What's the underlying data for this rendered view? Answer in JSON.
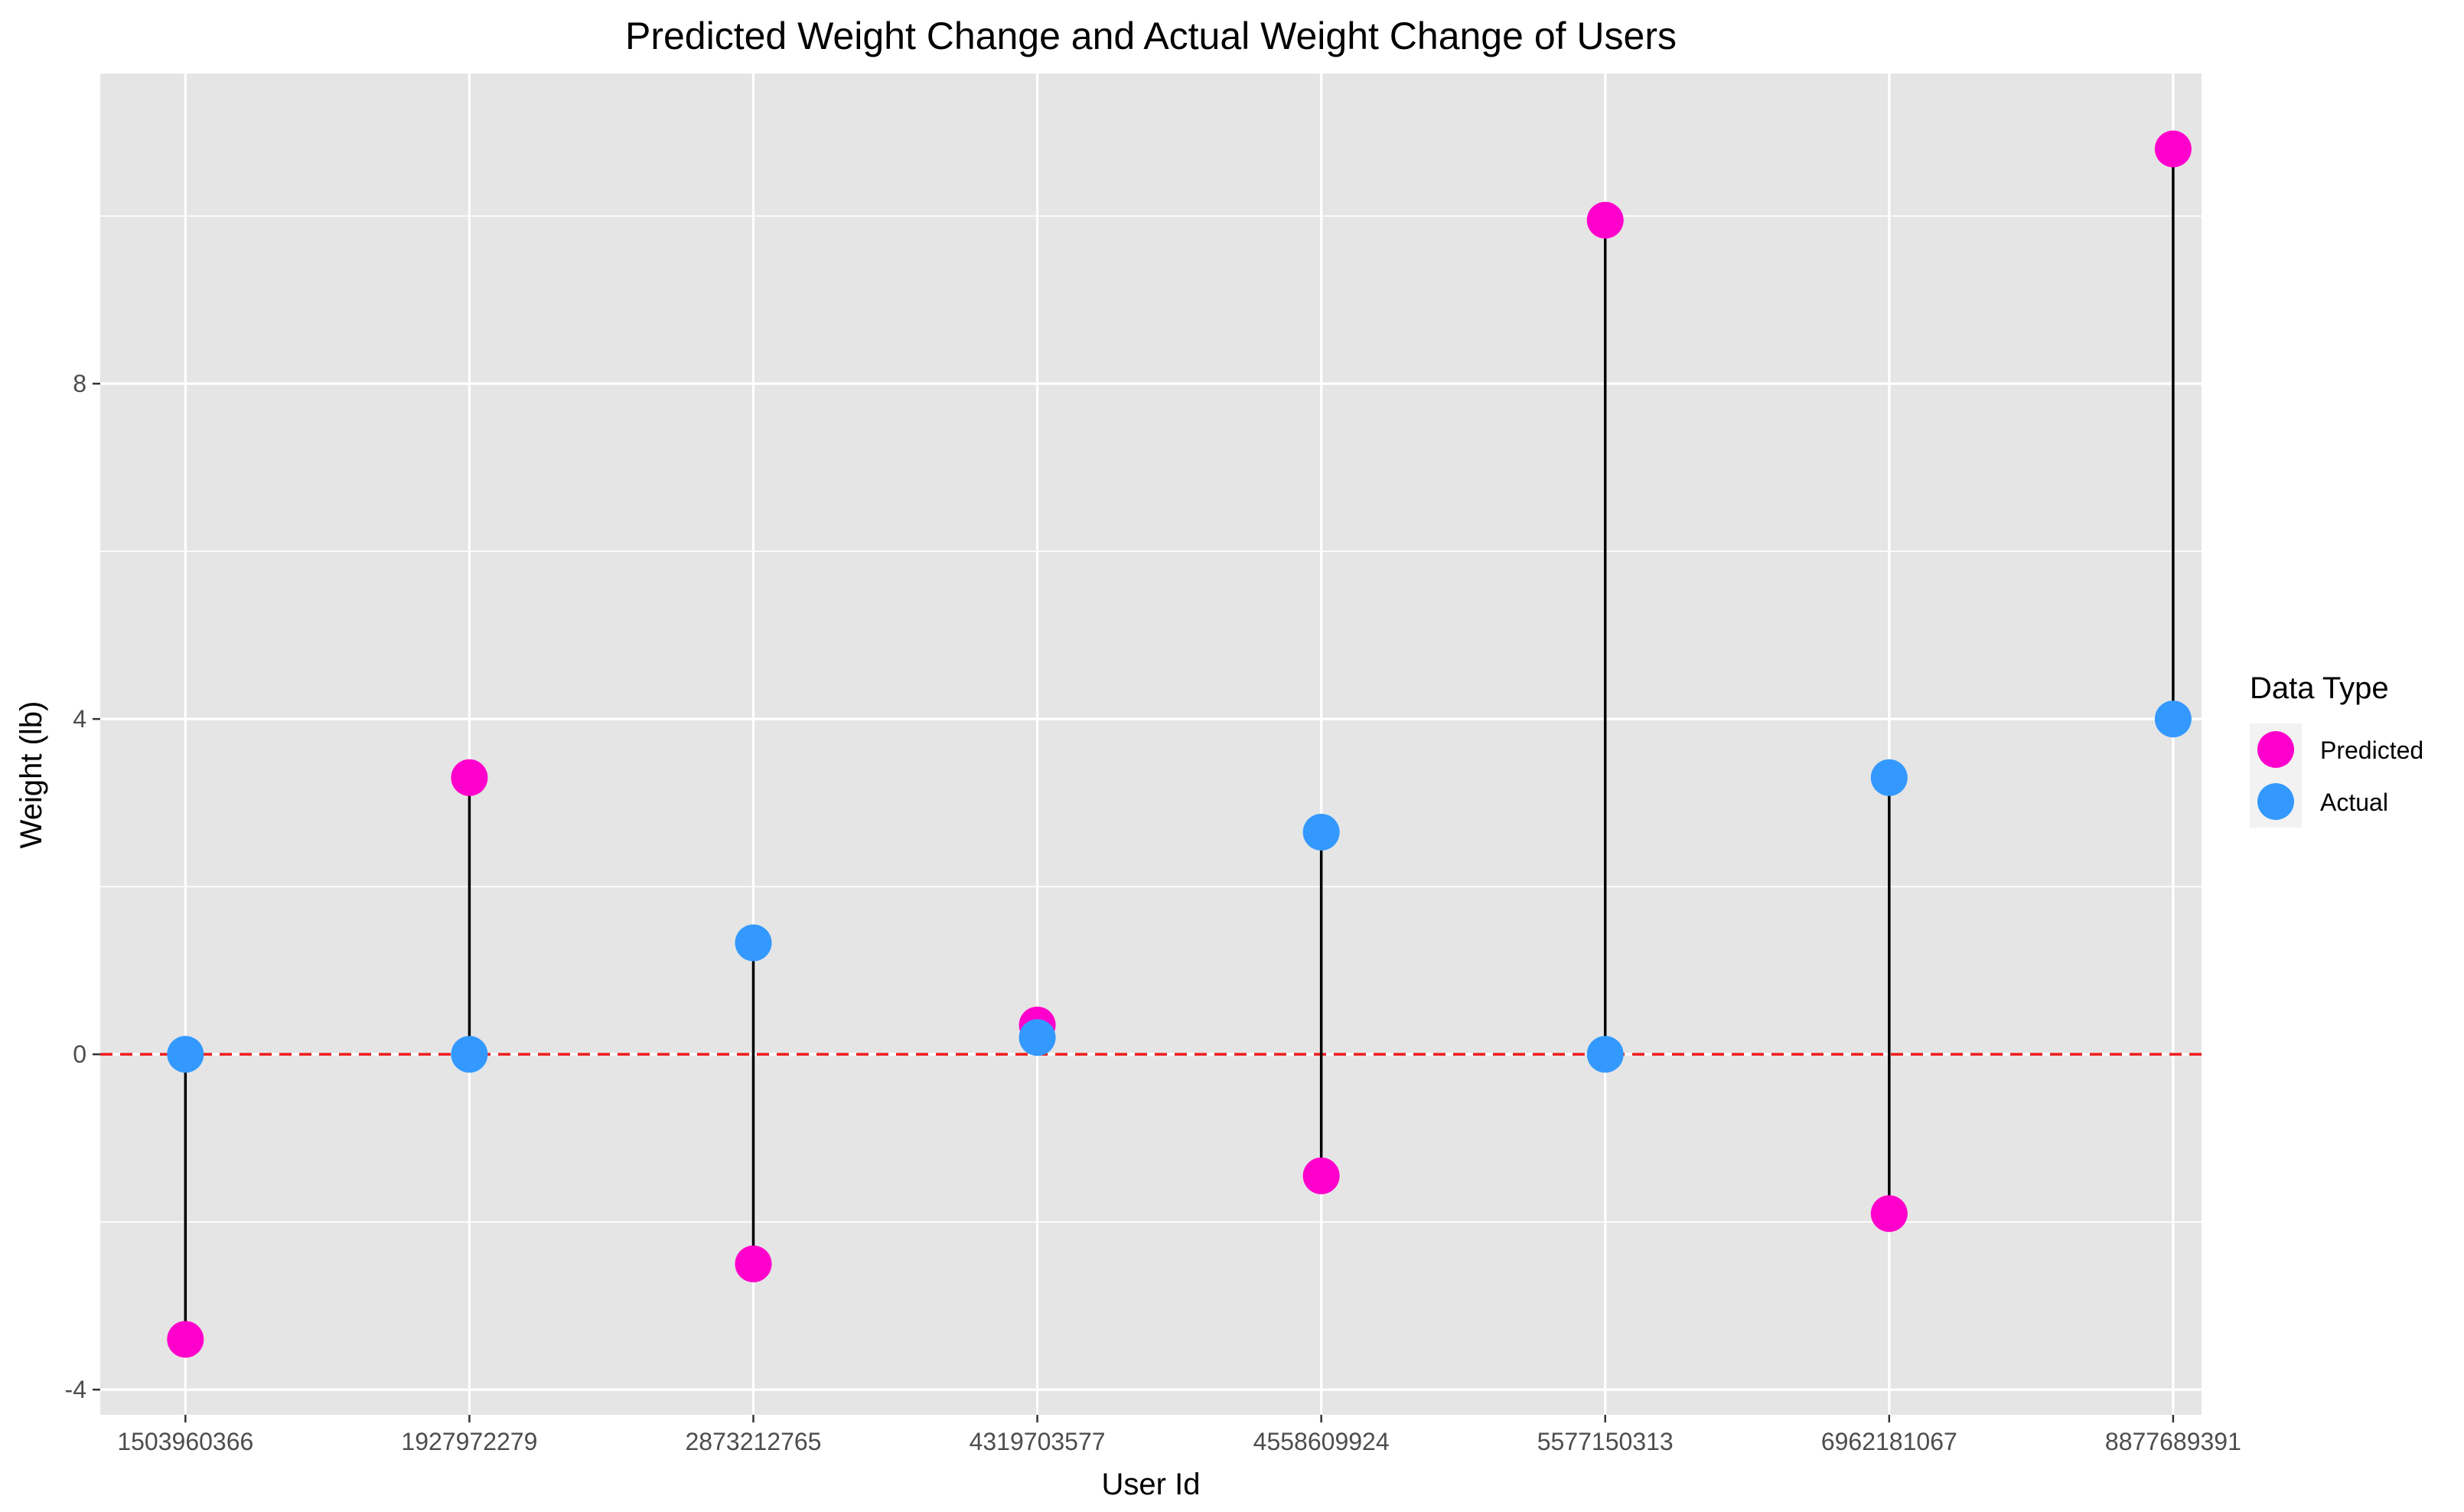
{
  "chart_data": {
    "type": "scatter",
    "title": "Predicted Weight Change and Actual Weight Change of Users",
    "xlabel": "User Id",
    "ylabel": "Weight (lb)",
    "categories": [
      "1503960366",
      "1927972279",
      "2873212765",
      "4319703577",
      "4558609924",
      "5577150313",
      "6962181067",
      "8877689391"
    ],
    "ylim": [
      -4.3,
      11.7
    ],
    "yticks": [
      -4,
      0,
      4,
      8
    ],
    "grid": true,
    "reference_line": {
      "y": 0,
      "style": "dashed",
      "color": "#ee1c1c"
    },
    "series": [
      {
        "name": "Predicted",
        "color": "#ff00cc",
        "values": [
          -3.4,
          3.3,
          -2.5,
          0.35,
          -1.45,
          9.95,
          -1.9,
          10.8
        ]
      },
      {
        "name": "Actual",
        "color": "#3399ff",
        "values": [
          0.0,
          0.0,
          1.33,
          0.2,
          2.65,
          0.0,
          3.3,
          4.0
        ]
      }
    ],
    "legend": {
      "title": "Data Type",
      "position": "right"
    }
  }
}
